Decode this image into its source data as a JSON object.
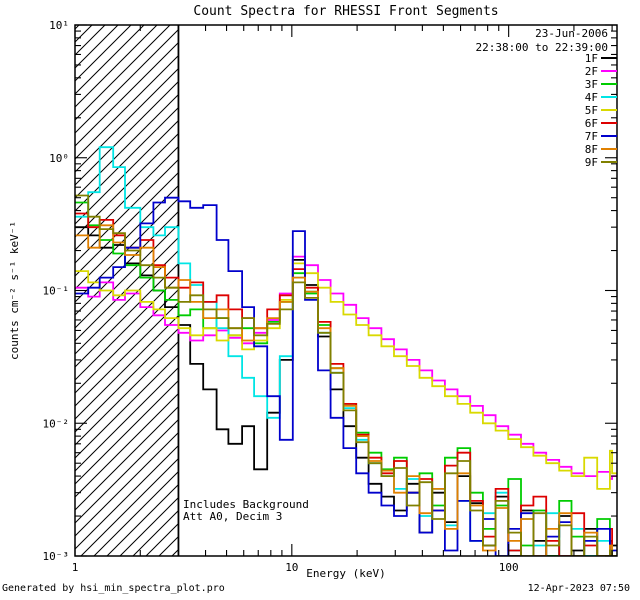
{
  "header": {
    "date": "23-Jun-2006",
    "time_range": "22:38:00 to 22:39:00"
  },
  "annotations": [
    "Includes Background",
    "Att A0, Decim 3"
  ],
  "footer": {
    "left": "Generated by hsi_min_spectra_plot.pro",
    "right": "12-Apr-2023 07:50"
  },
  "chart_data": {
    "type": "line",
    "title": "Count Spectra for RHESSI Front Segments",
    "xlabel": "Energy (keV)",
    "ylabel": "counts cm⁻² s⁻¹ keV⁻¹",
    "x_scale": "log",
    "y_scale": "log",
    "xlim": [
      1,
      316
    ],
    "ylim": [
      0.001,
      10
    ],
    "grid": false,
    "legend_position": "top-right",
    "x_ticks": [
      {
        "value": 1,
        "label": "1"
      },
      {
        "value": 10,
        "label": "10"
      },
      {
        "value": 100,
        "label": "100"
      }
    ],
    "y_ticks": [
      {
        "value": 0.001,
        "label": "10⁻³"
      },
      {
        "value": 0.01,
        "label": "10⁻²"
      },
      {
        "value": 0.1,
        "label": "10⁻¹"
      },
      {
        "value": 1,
        "label": "10⁰"
      },
      {
        "value": 10,
        "label": "10¹"
      }
    ],
    "hatched_region_kev": [
      1,
      3
    ],
    "energies_kev": [
      1.0,
      1.15,
      1.3,
      1.5,
      1.7,
      2.0,
      2.3,
      2.6,
      3.0,
      3.4,
      3.9,
      4.5,
      5.1,
      5.9,
      6.7,
      7.7,
      8.8,
      10.1,
      11.5,
      13.2,
      15.1,
      17.3,
      19.8,
      22.6,
      25.9,
      29.6,
      33.9,
      38.8,
      44.4,
      50.8,
      58.1,
      66.5,
      76.1,
      87.1,
      99.6,
      114,
      130,
      149,
      171,
      195,
      223,
      256,
      293,
      300
    ],
    "series": [
      {
        "name": "1F",
        "color": "#000000",
        "values": [
          0.3,
          0.26,
          0.21,
          0.22,
          0.16,
          0.13,
          0.1,
          0.075,
          0.055,
          0.028,
          0.018,
          0.009,
          0.007,
          0.0095,
          0.0045,
          0.012,
          0.03,
          0.17,
          0.11,
          0.045,
          0.018,
          0.0095,
          0.0055,
          0.0035,
          0.0028,
          0.0022,
          0.0035,
          0.0015,
          0.003,
          0.0018,
          0.004,
          0.0025,
          0.0012,
          0.0028,
          0.001,
          0.0022,
          0.0013,
          0.001,
          0.002,
          0.0011,
          0.0016,
          0.001,
          0.0013,
          0.0012
        ]
      },
      {
        "name": "2F",
        "color": "#ff00ff",
        "values": [
          0.105,
          0.09,
          0.115,
          0.085,
          0.095,
          0.075,
          0.065,
          0.055,
          0.048,
          0.042,
          0.046,
          0.05,
          0.044,
          0.04,
          0.048,
          0.06,
          0.095,
          0.18,
          0.155,
          0.12,
          0.095,
          0.078,
          0.062,
          0.052,
          0.043,
          0.036,
          0.03,
          0.025,
          0.021,
          0.018,
          0.016,
          0.0135,
          0.0115,
          0.0095,
          0.0082,
          0.007,
          0.006,
          0.0053,
          0.0047,
          0.0042,
          0.004,
          0.0043,
          0.0038,
          0.004
        ]
      },
      {
        "name": "3F",
        "color": "#00cc00",
        "values": [
          0.46,
          0.31,
          0.24,
          0.19,
          0.155,
          0.125,
          0.1,
          0.085,
          0.065,
          0.072,
          0.052,
          0.062,
          0.046,
          0.052,
          0.04,
          0.058,
          0.082,
          0.135,
          0.095,
          0.055,
          0.026,
          0.014,
          0.0085,
          0.006,
          0.0045,
          0.0055,
          0.003,
          0.0042,
          0.0024,
          0.0055,
          0.0065,
          0.003,
          0.0016,
          0.0024,
          0.0038,
          0.0012,
          0.0022,
          0.001,
          0.0026,
          0.0014,
          0.001,
          0.0019,
          0.0011,
          0.001
        ]
      },
      {
        "name": "4F",
        "color": "#00e5e5",
        "values": [
          0.36,
          0.55,
          1.2,
          0.85,
          0.42,
          0.3,
          0.26,
          0.3,
          0.16,
          0.11,
          0.082,
          0.052,
          0.032,
          0.022,
          0.016,
          0.011,
          0.032,
          0.125,
          0.098,
          0.048,
          0.024,
          0.013,
          0.0075,
          0.005,
          0.004,
          0.0032,
          0.0038,
          0.002,
          0.0032,
          0.0017,
          0.0026,
          0.0013,
          0.0021,
          0.003,
          0.0011,
          0.0019,
          0.0012,
          0.0021,
          0.001,
          0.0016,
          0.001,
          0.0013,
          0.001,
          0.001
        ]
      },
      {
        "name": "5F",
        "color": "#d9d900",
        "values": [
          0.14,
          0.115,
          0.1,
          0.092,
          0.1,
          0.082,
          0.072,
          0.062,
          0.052,
          0.046,
          0.052,
          0.042,
          0.046,
          0.036,
          0.042,
          0.052,
          0.085,
          0.16,
          0.135,
          0.105,
          0.082,
          0.066,
          0.055,
          0.046,
          0.038,
          0.032,
          0.027,
          0.022,
          0.019,
          0.016,
          0.014,
          0.012,
          0.01,
          0.0088,
          0.0076,
          0.0066,
          0.0057,
          0.005,
          0.0044,
          0.004,
          0.0055,
          0.0032,
          0.0062,
          0.0042
        ]
      },
      {
        "name": "6F",
        "color": "#dd0000",
        "values": [
          0.38,
          0.3,
          0.34,
          0.26,
          0.21,
          0.24,
          0.155,
          0.125,
          0.105,
          0.115,
          0.082,
          0.092,
          0.072,
          0.062,
          0.052,
          0.072,
          0.092,
          0.145,
          0.105,
          0.058,
          0.028,
          0.014,
          0.0082,
          0.0055,
          0.0042,
          0.0052,
          0.003,
          0.0038,
          0.0022,
          0.0048,
          0.006,
          0.0026,
          0.0014,
          0.0032,
          0.0011,
          0.0024,
          0.0028,
          0.0013,
          0.001,
          0.0021,
          0.0012,
          0.001,
          0.0016,
          0.001
        ]
      },
      {
        "name": "7F",
        "color": "#0000cc",
        "values": [
          0.095,
          0.105,
          0.125,
          0.15,
          0.21,
          0.32,
          0.46,
          0.5,
          0.47,
          0.42,
          0.44,
          0.24,
          0.14,
          0.075,
          0.038,
          0.016,
          0.0075,
          0.28,
          0.085,
          0.025,
          0.011,
          0.0065,
          0.0042,
          0.003,
          0.0024,
          0.002,
          0.003,
          0.0015,
          0.0022,
          0.0011,
          0.0026,
          0.0013,
          0.0019,
          0.001,
          0.0016,
          0.0021,
          0.001,
          0.0014,
          0.0018,
          0.001,
          0.0013,
          0.0016,
          0.001,
          0.0011
        ]
      },
      {
        "name": "8F",
        "color": "#e08000",
        "values": [
          0.26,
          0.21,
          0.31,
          0.23,
          0.185,
          0.21,
          0.15,
          0.105,
          0.12,
          0.082,
          0.062,
          0.072,
          0.052,
          0.042,
          0.052,
          0.062,
          0.082,
          0.125,
          0.098,
          0.052,
          0.026,
          0.0135,
          0.008,
          0.0052,
          0.0044,
          0.003,
          0.004,
          0.0021,
          0.0032,
          0.0016,
          0.0042,
          0.0024,
          0.0011,
          0.0023,
          0.0013,
          0.0019,
          0.001,
          0.0016,
          0.0021,
          0.001,
          0.0015,
          0.001,
          0.0012,
          0.001
        ]
      },
      {
        "name": "9F",
        "color": "#808000",
        "values": [
          0.52,
          0.36,
          0.29,
          0.27,
          0.2,
          0.155,
          0.125,
          0.105,
          0.082,
          0.092,
          0.072,
          0.062,
          0.052,
          0.062,
          0.046,
          0.056,
          0.072,
          0.115,
          0.088,
          0.048,
          0.024,
          0.0125,
          0.0072,
          0.005,
          0.004,
          0.0046,
          0.0024,
          0.0036,
          0.0019,
          0.0042,
          0.0052,
          0.0022,
          0.0012,
          0.0026,
          0.0015,
          0.001,
          0.0021,
          0.0012,
          0.0017,
          0.001,
          0.0014,
          0.001,
          0.0011,
          0.001
        ]
      }
    ]
  }
}
